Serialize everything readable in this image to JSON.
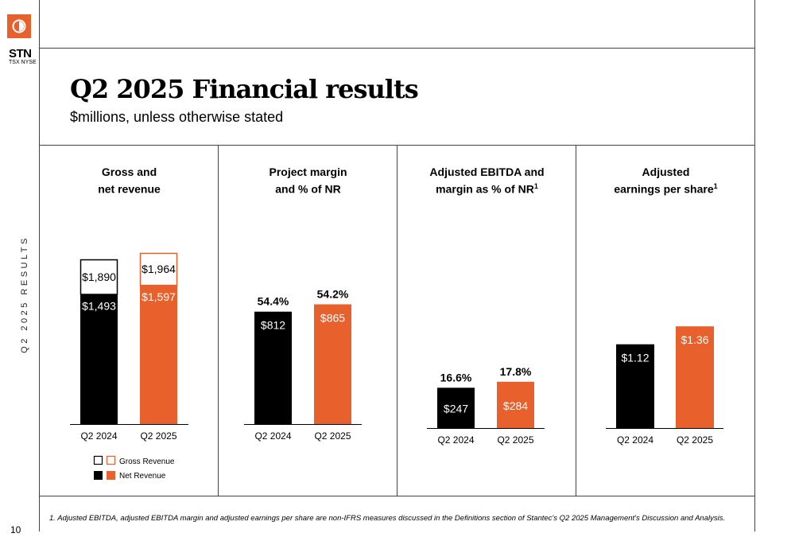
{
  "brand": {
    "ticker": "STN",
    "exchanges": "TSX NYSE"
  },
  "side_label": "Q2 2025 RESULTS",
  "page_number": "10",
  "title": "Q2 2025 Financial results",
  "subtitle": "$millions, unless otherwise stated",
  "colors": {
    "accent": "#e8612c",
    "dark": "#000000"
  },
  "panels": [
    {
      "line1": "Gross and",
      "line2": "net revenue",
      "sup": ""
    },
    {
      "line1": "Project margin",
      "line2": "and % of NR",
      "sup": ""
    },
    {
      "line1": "Adjusted EBITDA and",
      "line2": "margin as % of NR",
      "sup": "1"
    },
    {
      "line1": "Adjusted",
      "line2": "earnings per share",
      "sup": "1"
    }
  ],
  "legend": {
    "gross": "Gross Revenue",
    "net": "Net Revenue"
  },
  "footnote": "1.    Adjusted EBITDA, adjusted EBITDA margin and adjusted earnings per share are non-IFRS measures discussed in the Definitions section of Stantec's Q2 2025 Management's Discussion and Analysis.",
  "chart_data": [
    {
      "type": "bar",
      "categories": [
        "Q2 2024",
        "Q2 2025"
      ],
      "series": [
        {
          "name": "Gross Revenue",
          "values": [
            1890,
            1964
          ],
          "labels": [
            "$1,890",
            "$1,964"
          ]
        },
        {
          "name": "Net Revenue",
          "values": [
            1493,
            1597
          ],
          "labels": [
            "$1,493",
            "$1,597"
          ]
        }
      ]
    },
    {
      "type": "bar",
      "categories": [
        "Q2 2024",
        "Q2 2025"
      ],
      "values": [
        812,
        865
      ],
      "labels": [
        "$812",
        "$865"
      ],
      "annotations": [
        "54.4%",
        "54.2%"
      ]
    },
    {
      "type": "bar",
      "categories": [
        "Q2 2024",
        "Q2 2025"
      ],
      "values": [
        247,
        284
      ],
      "labels": [
        "$247",
        "$284"
      ],
      "annotations": [
        "16.6%",
        "17.8%"
      ]
    },
    {
      "type": "bar",
      "categories": [
        "Q2 2024",
        "Q2 2025"
      ],
      "values": [
        1.12,
        1.36
      ],
      "labels": [
        "$1.12",
        "$1.36"
      ]
    }
  ]
}
